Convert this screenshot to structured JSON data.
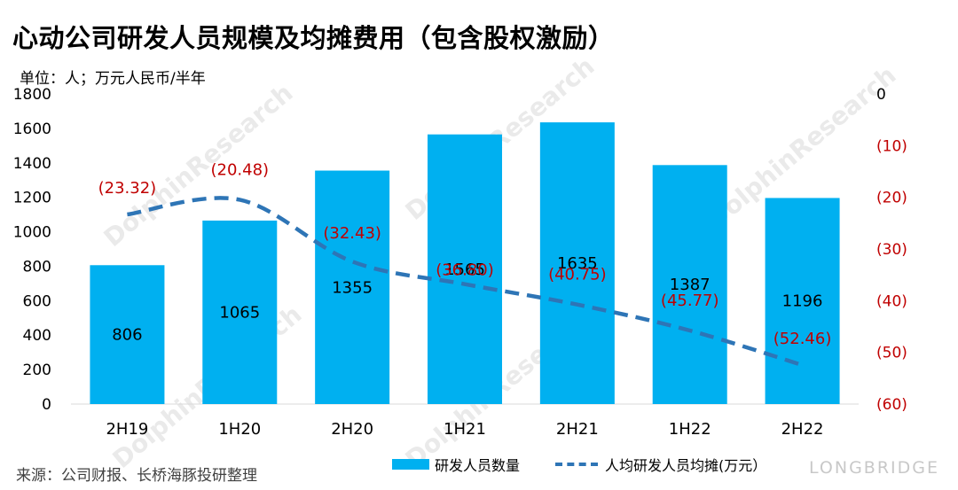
{
  "title": "心动公司研发人员规模及均摊费用（包含股权激励）",
  "unit_label": "单位：人；万元人民币/半年",
  "source": "来源：公司财报、长桥海豚投研整理",
  "brand": "LONGBRIDGE",
  "watermark": "DolphinResearch",
  "colors": {
    "bar": "#00b0f0",
    "line": "#2e75b6",
    "negative_label": "#c00000"
  },
  "chart_data": {
    "type": "bar+line",
    "categories": [
      "2H19",
      "1H20",
      "2H20",
      "1H21",
      "2H21",
      "1H22",
      "2H22"
    ],
    "series": [
      {
        "name": "研发人员数量",
        "type": "bar",
        "axis": "left",
        "values": [
          806,
          1065,
          1355,
          1565,
          1635,
          1387,
          1196
        ],
        "labels": [
          "806",
          "1065",
          "1355",
          "1565",
          "1635",
          "1387",
          "1196"
        ]
      },
      {
        "name": "人均研发人员均摊(万元）",
        "type": "line",
        "axis": "right",
        "style": "dashed",
        "values": [
          -23.32,
          -20.48,
          -32.43,
          -36.8,
          -40.75,
          -45.77,
          -52.46
        ],
        "labels": [
          "(23.32)",
          "(20.48)",
          "(32.43)",
          "(36.80)",
          "(40.75)",
          "(45.77)",
          "(52.46)"
        ]
      }
    ],
    "left_axis": {
      "min": 0,
      "max": 1800,
      "step": 200,
      "ticks": [
        "0",
        "200",
        "400",
        "600",
        "800",
        "1000",
        "1200",
        "1400",
        "1600",
        "1800"
      ]
    },
    "right_axis": {
      "min": -60,
      "max": 0,
      "step": 10,
      "ticks": [
        "0",
        "(10)",
        "(20)",
        "(30)",
        "(40)",
        "(50)",
        "(60)"
      ]
    },
    "legend_position": "bottom-right",
    "grid": false
  }
}
